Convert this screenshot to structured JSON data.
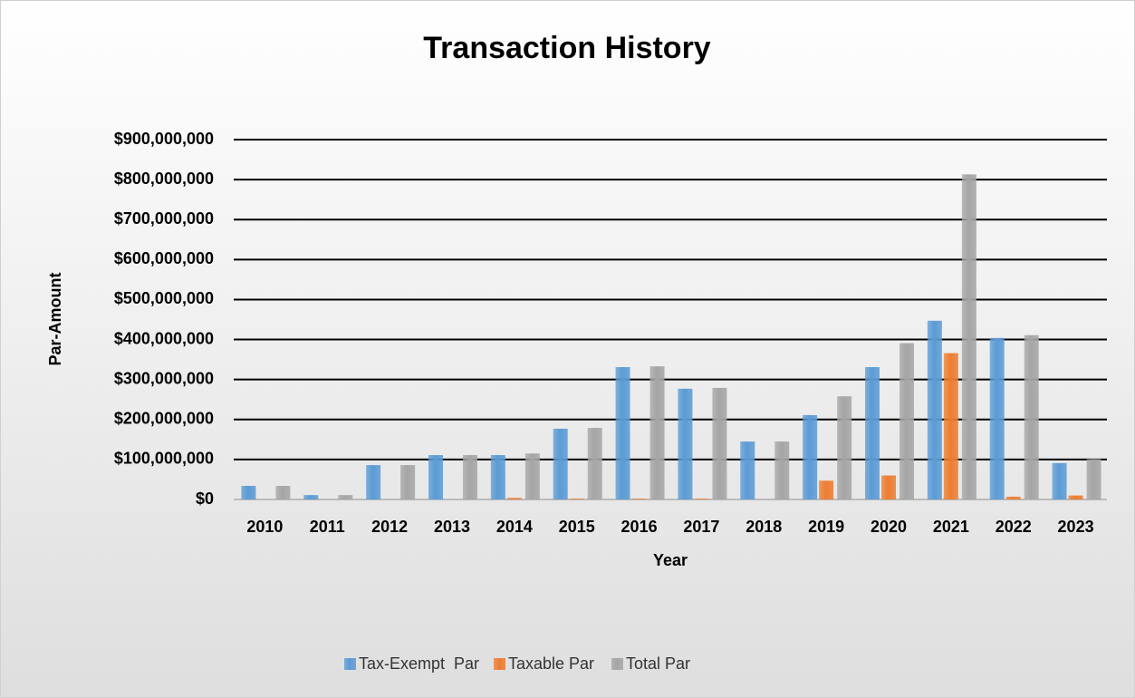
{
  "chart_data": {
    "type": "bar",
    "title": "Transaction History",
    "x_label": "Year",
    "y_label": "Par-Amount",
    "categories": [
      "2010",
      "2011",
      "2012",
      "2013",
      "2014",
      "2015",
      "2016",
      "2017",
      "2018",
      "2019",
      "2020",
      "2021",
      "2022",
      "2023"
    ],
    "series": [
      {
        "name": "Tax-Exempt  Par",
        "color": "#5b9bd5",
        "values": [
          34000000,
          11000000,
          86000000,
          111000000,
          111000000,
          177000000,
          331000000,
          277000000,
          145000000,
          211000000,
          331000000,
          447000000,
          404000000,
          91000000
        ]
      },
      {
        "name": "Taxable Par",
        "color": "#ed7d31",
        "values": [
          0,
          0,
          0,
          0,
          4000000,
          2000000,
          2000000,
          2000000,
          0,
          47000000,
          60000000,
          366000000,
          7000000,
          10000000
        ]
      },
      {
        "name": "Total Par",
        "color": "#a5a5a5",
        "values": [
          34000000,
          11000000,
          86000000,
          111000000,
          115000000,
          179000000,
          333000000,
          279000000,
          145000000,
          258000000,
          391000000,
          813000000,
          411000000,
          101000000
        ]
      }
    ],
    "ylim": [
      0,
      900000000
    ],
    "yticks": [
      {
        "value": 0,
        "label": "$0"
      },
      {
        "value": 100000000,
        "label": "$100,000,000"
      },
      {
        "value": 200000000,
        "label": "$200,000,000"
      },
      {
        "value": 300000000,
        "label": "$300,000,000"
      },
      {
        "value": 400000000,
        "label": "$400,000,000"
      },
      {
        "value": 500000000,
        "label": "$500,000,000"
      },
      {
        "value": 600000000,
        "label": "$600,000,000"
      },
      {
        "value": 700000000,
        "label": "$700,000,000"
      },
      {
        "value": 800000000,
        "label": "$800,000,000"
      },
      {
        "value": 900000000,
        "label": "$900,000,000"
      }
    ],
    "grid": true,
    "legend": "bottom"
  }
}
